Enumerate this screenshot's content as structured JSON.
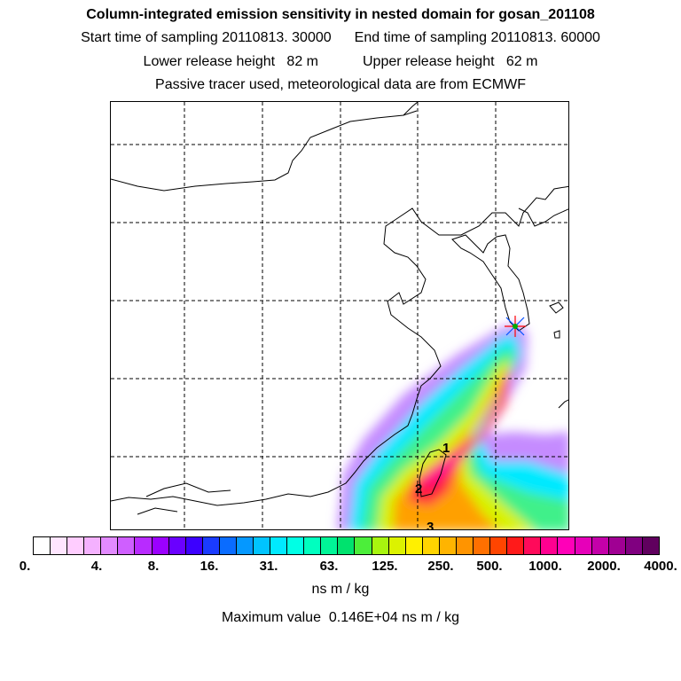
{
  "title": "Column-integrated emission sensitivity in nested domain for gosan_201108",
  "sampling": {
    "start": "Start time of sampling 20110813. 30000",
    "end": "End time of sampling 20110813. 60000"
  },
  "release": {
    "lower": "Lower release height   82 m",
    "upper": "Upper release height   62 m"
  },
  "tracer_note": "Passive tracer used, meteorological data are from ECMWF",
  "map": {
    "point_labels": [
      "1",
      "2",
      "3"
    ],
    "receptor_marker": "star-icon"
  },
  "colorbar": {
    "colors": [
      "#ffffff",
      "#ffe5ff",
      "#ffcdff",
      "#f4b1ff",
      "#e28aff",
      "#cf5fff",
      "#b82bff",
      "#9b00ff",
      "#6a00ff",
      "#3c00ff",
      "#1a3bff",
      "#0a6cff",
      "#0598ff",
      "#00c4ff",
      "#00e9ff",
      "#00ffe5",
      "#00ffbf",
      "#00f597",
      "#00e26e",
      "#4cee3a",
      "#a8f50f",
      "#dcf200",
      "#fff000",
      "#ffd400",
      "#ffb400",
      "#ff9400",
      "#ff7000",
      "#ff4500",
      "#ff1a1a",
      "#ff0a5a",
      "#ff0090",
      "#ff00b8",
      "#e600b9",
      "#c400a9",
      "#a00093",
      "#800080",
      "#60005e"
    ],
    "ticks": [
      "0.",
      "4.",
      "8.",
      "16.",
      "31.",
      "63.",
      "125.",
      "250.",
      "500.",
      "1000.",
      "2000.",
      "4000."
    ],
    "unit": "ns m / kg"
  },
  "max_value_text": "Maximum value  0.146E+04 ns m / kg"
}
